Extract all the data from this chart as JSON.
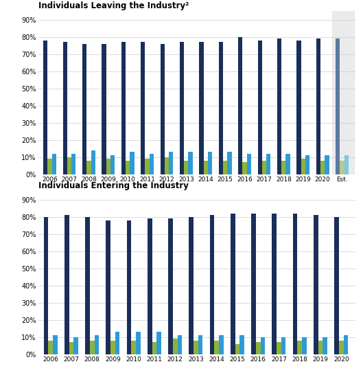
{
  "leaving_years": [
    "2006",
    "2007",
    "2008",
    "2009",
    "2010",
    "2011",
    "2012",
    "2013",
    "2014",
    "2015",
    "2016",
    "2017",
    "2018",
    "2019",
    "2020",
    "Est."
  ],
  "leaving_large": [
    78,
    77,
    76,
    76,
    77,
    77,
    76,
    77,
    77,
    77,
    80,
    78,
    79,
    78,
    79,
    79
  ],
  "leaving_medium": [
    9,
    10,
    8,
    9,
    8,
    9,
    10,
    8,
    8,
    8,
    7,
    8,
    8,
    9,
    8,
    8
  ],
  "leaving_small": [
    12,
    12,
    14,
    11,
    13,
    12,
    13,
    13,
    13,
    13,
    12,
    12,
    12,
    11,
    11,
    11
  ],
  "entering_years": [
    "2006",
    "2007",
    "2008",
    "2009",
    "2010",
    "2011",
    "2012",
    "2013",
    "2014",
    "2015",
    "2016",
    "2017",
    "2018",
    "2019",
    "2020"
  ],
  "entering_large": [
    80,
    81,
    80,
    78,
    78,
    79,
    79,
    80,
    81,
    82,
    82,
    82,
    82,
    81,
    80
  ],
  "entering_medium": [
    8,
    7,
    8,
    8,
    8,
    7,
    9,
    8,
    8,
    6,
    7,
    7,
    8,
    8,
    8
  ],
  "entering_small": [
    11,
    10,
    11,
    13,
    13,
    13,
    11,
    11,
    11,
    11,
    10,
    10,
    10,
    10,
    11
  ],
  "color_large": "#1a2e5a",
  "color_medium": "#8db33a",
  "color_small": "#2e9bd6",
  "color_est_large": "#5a7aa0",
  "color_est_medium": "#b8c890",
  "color_est_small": "#7ec8e3",
  "title1": "Individuals Leaving the Industry²",
  "title2": "Individuals Entering the Industry",
  "shade_color": "#ebebeb",
  "grid_color": "#cccccc",
  "ylim": [
    0,
    95
  ],
  "yticks": [
    0,
    10,
    20,
    30,
    40,
    50,
    60,
    70,
    80,
    90
  ]
}
